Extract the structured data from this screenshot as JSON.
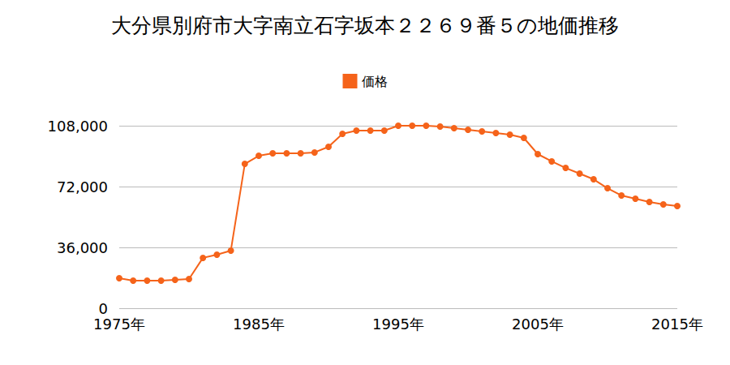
{
  "chart_data": {
    "type": "line",
    "title": "大分県別府市大字南立石字坂本２２６９番５の地価推移",
    "x": [
      1975,
      1976,
      1977,
      1978,
      1979,
      1980,
      1981,
      1982,
      1983,
      1984,
      1985,
      1986,
      1987,
      1988,
      1989,
      1990,
      1991,
      1992,
      1993,
      1994,
      1995,
      1996,
      1997,
      1998,
      1999,
      2000,
      2001,
      2002,
      2003,
      2004,
      2005,
      2006,
      2007,
      2008,
      2009,
      2010,
      2011,
      2012,
      2013,
      2014,
      2015
    ],
    "series": [
      {
        "name": "価格",
        "color": "#f5631a",
        "marker": "circle",
        "values": [
          17800,
          16300,
          16300,
          16300,
          16800,
          17300,
          29800,
          31700,
          34100,
          85400,
          90200,
          91700,
          91700,
          91700,
          92200,
          95500,
          103200,
          105100,
          105100,
          105100,
          108000,
          108000,
          108000,
          107500,
          106600,
          105600,
          104600,
          103700,
          102700,
          100800,
          91200,
          86900,
          83000,
          79700,
          76300,
          71000,
          66700,
          64800,
          62900,
          61400,
          60500
        ]
      }
    ],
    "xlim": [
      1975,
      2015
    ],
    "xticks": [
      {
        "value": 1975,
        "label": "1975年"
      },
      {
        "value": 1985,
        "label": "1985年"
      },
      {
        "value": 1995,
        "label": "1995年"
      },
      {
        "value": 2005,
        "label": "2005年"
      },
      {
        "value": 2015,
        "label": "2015年"
      }
    ],
    "ylim": [
      0,
      108000
    ],
    "yticks": [
      0,
      {
        "value": 36000,
        "label": "36,000"
      },
      {
        "value": 72000,
        "label": "72,000"
      },
      {
        "value": 108000,
        "label": "108,000"
      }
    ],
    "grid": true,
    "legend": "top"
  }
}
